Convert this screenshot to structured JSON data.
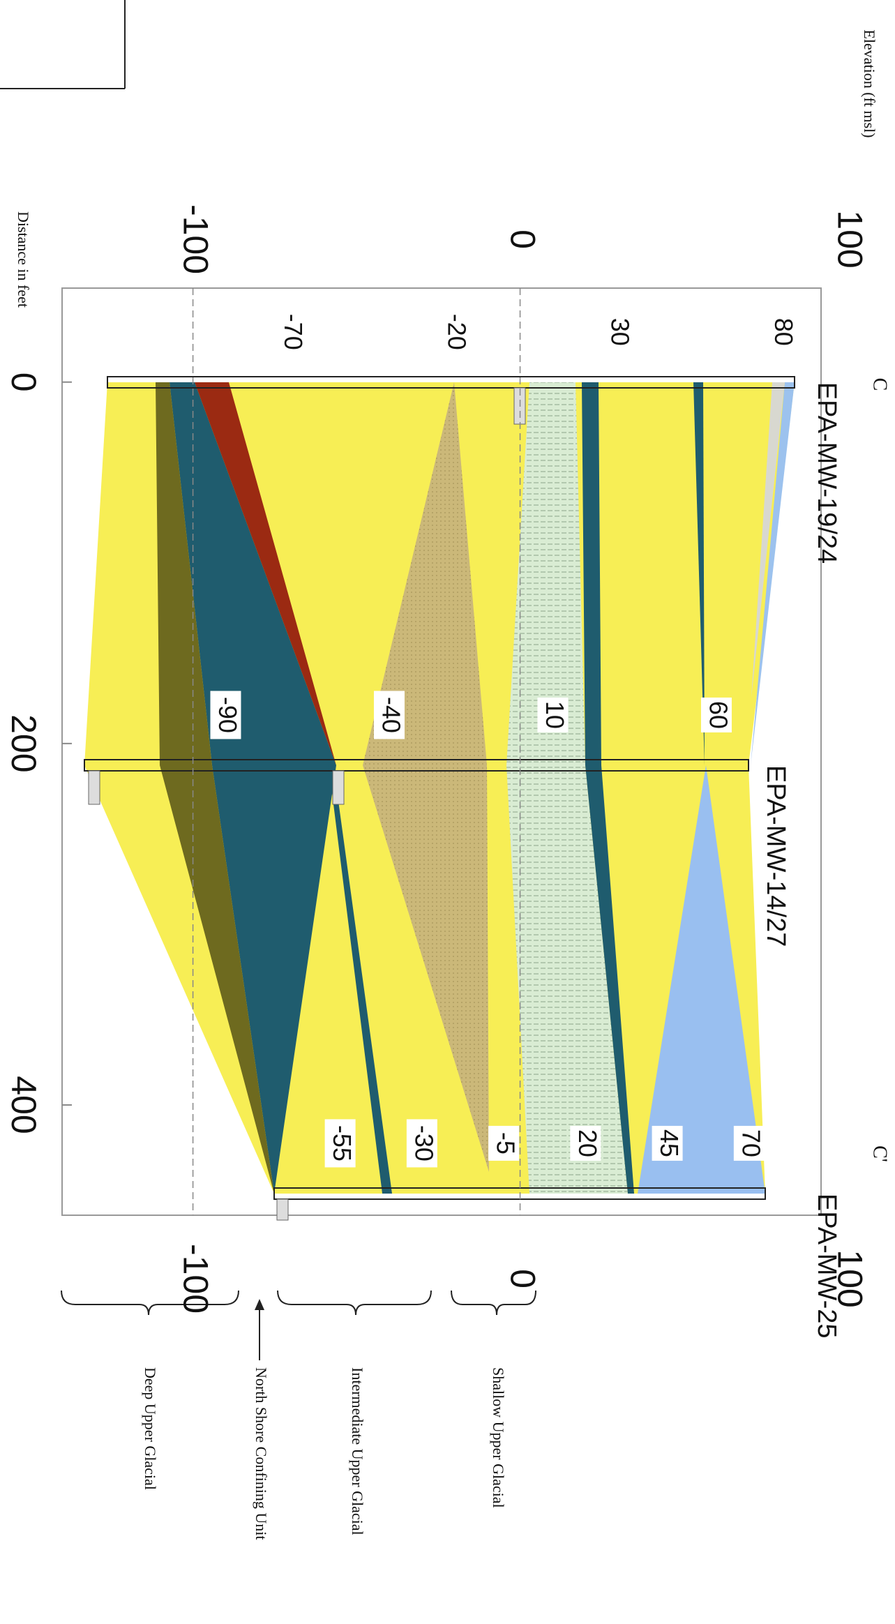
{
  "chart_data": {
    "type": "cross-section",
    "section_start": "C",
    "section_end": "C'",
    "y_label": "Elevation (ft msl)",
    "x_label": "Distance in feet",
    "xlim": [
      -52,
      461
    ],
    "ylim": [
      -140,
      92
    ],
    "xticks": [
      0,
      200,
      400
    ],
    "yticks": [
      -100,
      0,
      100
    ],
    "grid": true,
    "wells": [
      {
        "name": "EPA-MW-19/24",
        "distance": 0,
        "elevation_labels": [
          80,
          30,
          -20,
          -70
        ]
      },
      {
        "name": "EPA-MW-14/27",
        "distance": 212,
        "elevation_labels": [
          60,
          10,
          -40,
          -90
        ]
      },
      {
        "name": "EPA-MW-25",
        "distance": 449,
        "elevation_labels": [
          70,
          45,
          20,
          -5,
          -30,
          -55
        ]
      }
    ],
    "hydro_units": [
      "Shallow Upper Glacial",
      "Intermediate Upper Glacial",
      "North Shore Confining Unit",
      "Deep Upper Glacial"
    ]
  }
}
